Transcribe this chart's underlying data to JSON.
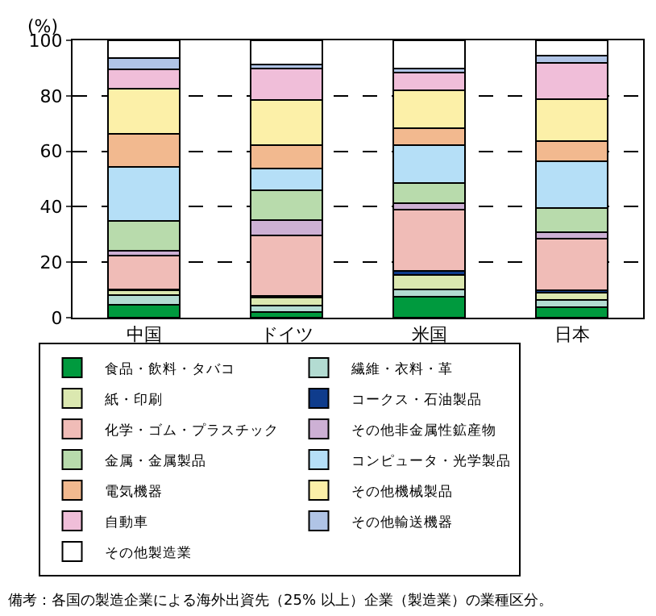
{
  "chart_data": {
    "type": "bar",
    "stacked": true,
    "ylabel": "(%)",
    "categories": [
      "中国",
      "ドイツ",
      "米国",
      "日本"
    ],
    "series": [
      {
        "name": "食品・飲料・タバコ",
        "color": "#009a3e",
        "values": [
          4.7,
          2.1,
          7.7,
          3.8
        ]
      },
      {
        "name": "繊維・衣料・革",
        "color": "#b3dcd2",
        "values": [
          3.3,
          2.4,
          2.6,
          2.7
        ]
      },
      {
        "name": "紙・印刷",
        "color": "#dbe8b0",
        "values": [
          1.8,
          2.7,
          5.2,
          2.6
        ]
      },
      {
        "name": "コークス・石油製品",
        "color": "#0f3c8c",
        "values": [
          0.3,
          0.7,
          1.3,
          0.7
        ]
      },
      {
        "name": "化学・ゴム・プラスチック",
        "color": "#f0bcb7",
        "values": [
          12.4,
          21.8,
          22.3,
          18.8
        ]
      },
      {
        "name": "その他非金属性鉱産物",
        "color": "#cdb0d4",
        "values": [
          1.6,
          5.6,
          2.1,
          2.1
        ]
      },
      {
        "name": "金属・金属製品",
        "color": "#b8dbac",
        "values": [
          10.8,
          10.6,
          7.3,
          8.9
        ]
      },
      {
        "name": "コンピュータ・光学製品",
        "color": "#b5dff7",
        "values": [
          19.4,
          7.9,
          13.6,
          16.8
        ]
      },
      {
        "name": "電気機器",
        "color": "#f2b98f",
        "values": [
          12.0,
          8.3,
          6.3,
          7.3
        ]
      },
      {
        "name": "その他機械製品",
        "color": "#fcf0a8",
        "values": [
          16.2,
          16.3,
          13.6,
          15.2
        ]
      },
      {
        "name": "自動車",
        "color": "#f0bed9",
        "values": [
          6.9,
          11.5,
          6.3,
          13.1
        ]
      },
      {
        "name": "その他輸送機器",
        "color": "#b0c4e6",
        "values": [
          4.1,
          1.4,
          1.6,
          2.6
        ]
      },
      {
        "name": "その他製造業",
        "color": "#ffffff",
        "values": [
          6.5,
          8.7,
          10.1,
          5.4
        ]
      }
    ],
    "ylim": [
      0,
      100
    ],
    "yticks": [
      0,
      20,
      40,
      60,
      80,
      100
    ],
    "grid": "y",
    "legend": "bottom",
    "annotations": [
      "備考：各国の製造企業による海外出資先（25% 以上）企業（製造業）の業種区分。"
    ]
  }
}
